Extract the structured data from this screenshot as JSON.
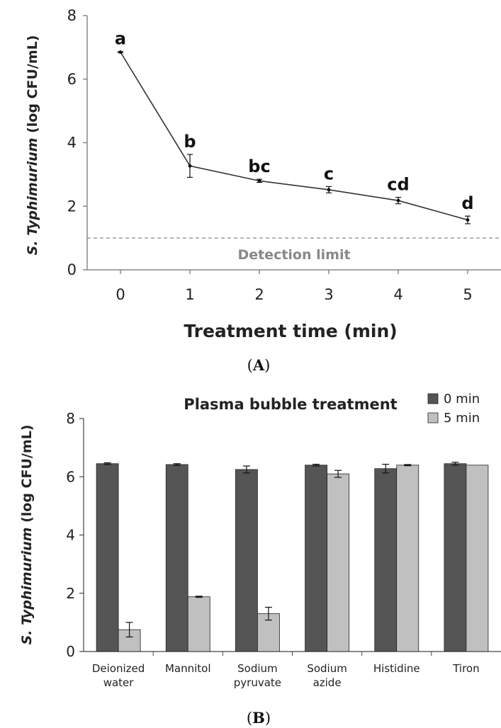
{
  "chart_data": [
    {
      "type": "line",
      "panel_label": "A",
      "xlabel": "Treatment time (min)",
      "ylabel_italic": "S. Typhimurium",
      "ylabel_rest": "(log CFU/mL)",
      "x": [
        0,
        1,
        2,
        3,
        4,
        5
      ],
      "x_tick_labels": [
        "0",
        "1",
        "2",
        "3",
        "4",
        "5"
      ],
      "y": [
        6.85,
        3.27,
        2.8,
        2.52,
        2.18,
        1.57
      ],
      "error": [
        0.02,
        0.36,
        0.05,
        0.1,
        0.1,
        0.12
      ],
      "significance_letters": [
        "a",
        "b",
        "bc",
        "c",
        "cd",
        "d"
      ],
      "ylim": [
        0,
        8
      ],
      "y_ticks": [
        0,
        2,
        4,
        6,
        8
      ],
      "detection_limit": {
        "value": 1.0,
        "label": "Detection limit"
      },
      "grid": false
    },
    {
      "type": "bar",
      "panel_label": "B",
      "title": "Plasma bubble treatment",
      "ylabel_italic": "S. Typhimurium",
      "ylabel_rest": "(log CFU/mL)",
      "categories": [
        [
          "Deionized",
          "water"
        ],
        [
          "Mannitol"
        ],
        [
          "Sodium",
          "pyruvate"
        ],
        [
          "Sodium",
          "azide"
        ],
        [
          "Histidine"
        ],
        [
          "Tiron"
        ]
      ],
      "series": [
        {
          "name": "0 min",
          "color": "#555555",
          "values": [
            6.45,
            6.42,
            6.25,
            6.4,
            6.28,
            6.45
          ],
          "error": [
            0.03,
            0.03,
            0.12,
            0.03,
            0.15,
            0.05
          ]
        },
        {
          "name": "5 min",
          "color": "#c0c0c0",
          "values": [
            0.75,
            1.88,
            1.3,
            6.1,
            6.4,
            6.4
          ],
          "error": [
            0.25,
            0.02,
            0.22,
            0.12,
            0.02,
            0.0
          ]
        }
      ],
      "ylim": [
        0,
        8
      ],
      "y_ticks": [
        0,
        2,
        4,
        6,
        8
      ],
      "legend_position": "top-right",
      "grid": false
    }
  ]
}
